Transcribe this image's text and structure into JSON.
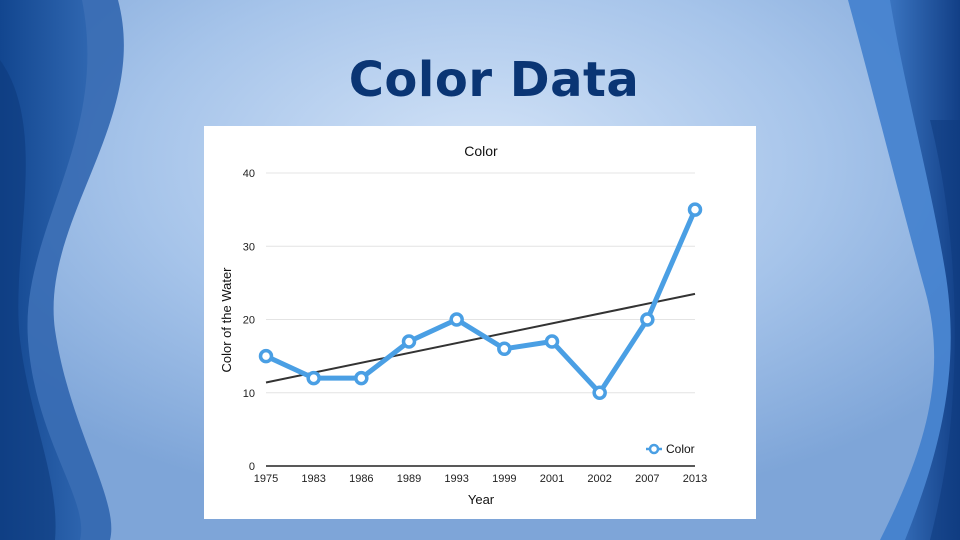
{
  "slide": {
    "title": "Color Data"
  },
  "theme": {
    "background": "#a9c8ee",
    "title_color": "#0a3574",
    "series_color": "#4a9fe4",
    "trendline_color": "#333333"
  },
  "chart_data": {
    "type": "line",
    "title": "Color",
    "xlabel": "Year",
    "ylabel": "Color of the Water",
    "categories": [
      "1975",
      "1983",
      "1986",
      "1989",
      "1993",
      "1999",
      "2001",
      "2002",
      "2007",
      "2013"
    ],
    "series": [
      {
        "name": "Color",
        "values": [
          15,
          12,
          12,
          17,
          20,
          16,
          17,
          10,
          20,
          35
        ]
      }
    ],
    "trendline": {
      "type": "linear",
      "start": 11.4,
      "end": 23.5
    },
    "ylim": [
      0,
      40
    ],
    "yticks": [
      0,
      10,
      20,
      30,
      40
    ],
    "grid": true,
    "legend": "bottom-right"
  }
}
